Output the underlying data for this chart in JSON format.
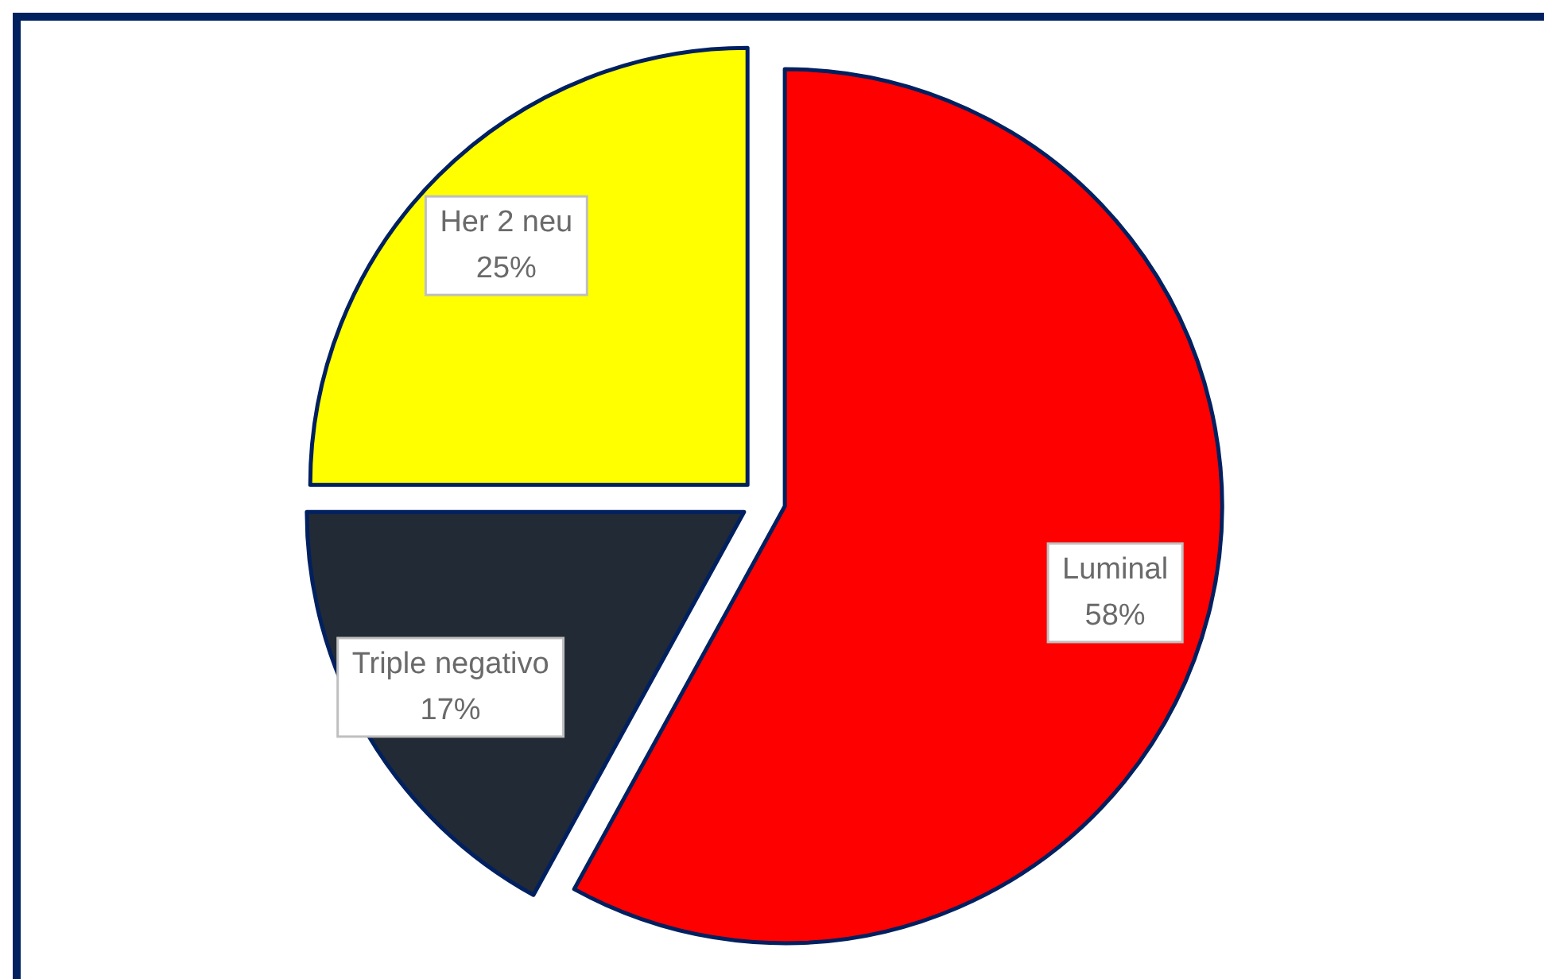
{
  "chart_data": {
    "type": "pie",
    "categories": [
      "Luminal",
      "Triple negativo",
      "Her 2 neu"
    ],
    "values": [
      58,
      17,
      25
    ],
    "colors": [
      "#ff0000",
      "#222a35",
      "#ffff00"
    ],
    "value_labels": [
      "58%",
      "17%",
      "25%"
    ]
  }
}
